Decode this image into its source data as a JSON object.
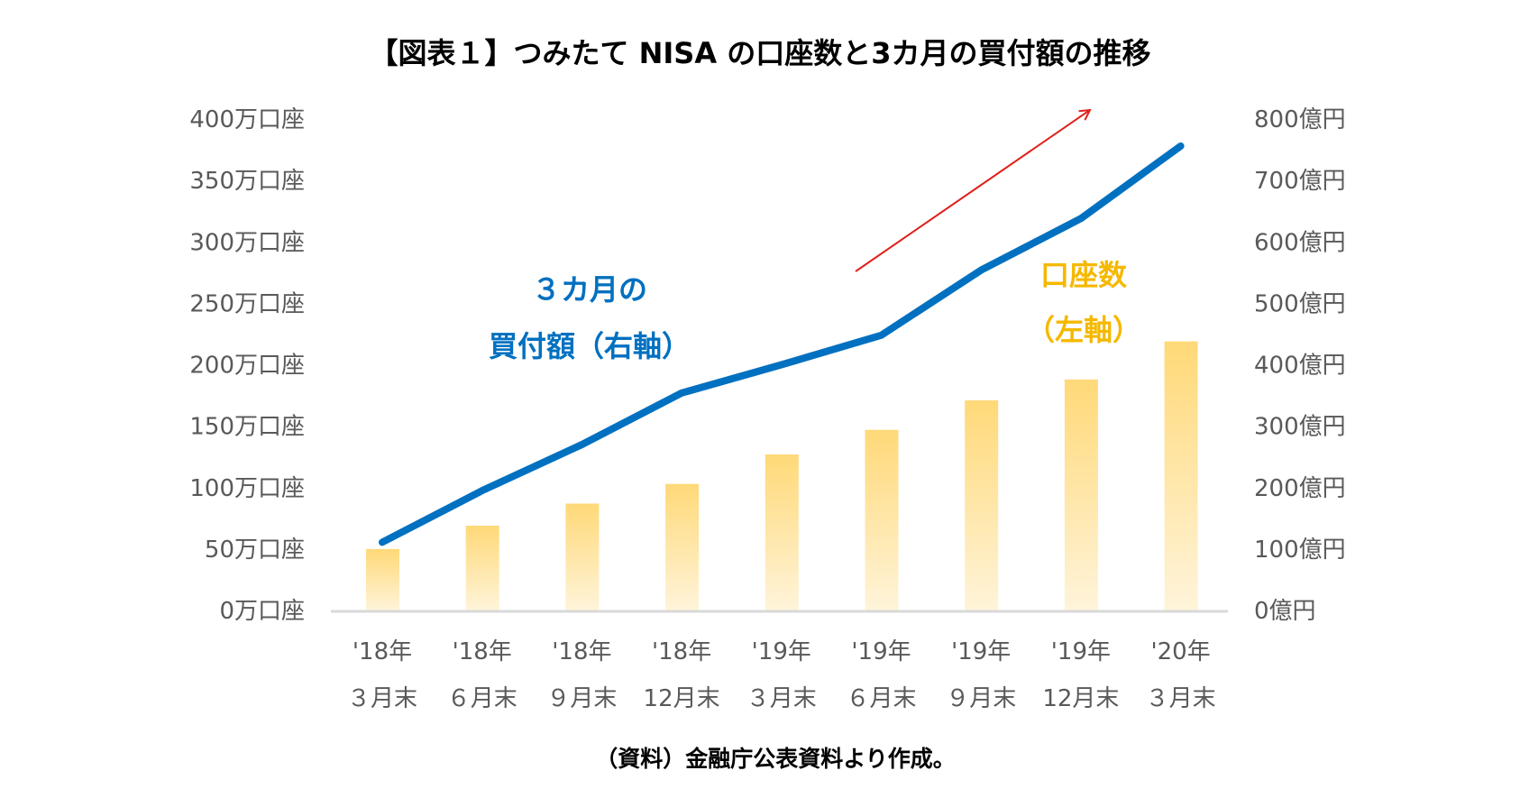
{
  "chart_data": {
    "type": "bar+line",
    "title": "【図表１】つみたて NISA の口座数と3カ月の買付額の推移",
    "source": "（資料）金融庁公表資料より作成。",
    "categories": [
      [
        "'18年",
        "３月末"
      ],
      [
        "'18年",
        "６月末"
      ],
      [
        "'18年",
        "９月末"
      ],
      [
        "'18年",
        "12月末"
      ],
      [
        "'19年",
        "３月末"
      ],
      [
        "'19年",
        "６月末"
      ],
      [
        "'19年",
        "９月末"
      ],
      [
        "'19年",
        "12月末"
      ],
      [
        "'20年",
        "３月末"
      ]
    ],
    "left_axis": {
      "ylim": [
        0,
        400
      ],
      "ticks": [
        0,
        50,
        100,
        150,
        200,
        250,
        300,
        350,
        400
      ],
      "tick_labels": [
        "0万口座",
        "50万口座",
        "100万口座",
        "150万口座",
        "200万口座",
        "250万口座",
        "300万口座",
        "350万口座",
        "400万口座"
      ]
    },
    "right_axis": {
      "ylim": [
        0,
        800
      ],
      "ticks": [
        0,
        100,
        200,
        300,
        400,
        500,
        600,
        700,
        800
      ],
      "tick_labels": [
        "0億円",
        "100億円",
        "200億円",
        "300億円",
        "400億円",
        "500億円",
        "600億円",
        "700億円",
        "800億円"
      ]
    },
    "series": [
      {
        "name": "口座数（左軸）",
        "label_lines": [
          "口座数",
          "（左軸）"
        ],
        "type": "bar",
        "axis": "left",
        "values": [
          50,
          69,
          87,
          103,
          127,
          147,
          171,
          188,
          219
        ],
        "color": "#FFD978"
      },
      {
        "name": "３カ月の買付額（右軸）",
        "label_lines": [
          "３カ月の",
          "買付額（右軸）"
        ],
        "type": "line",
        "axis": "right",
        "values": [
          111,
          195,
          270,
          354,
          400,
          448,
          554,
          638,
          756
        ],
        "color": "#0070C0"
      }
    ],
    "annotation_arrow_color": "#E0201B",
    "grid": false,
    "legend": "inline labels"
  }
}
